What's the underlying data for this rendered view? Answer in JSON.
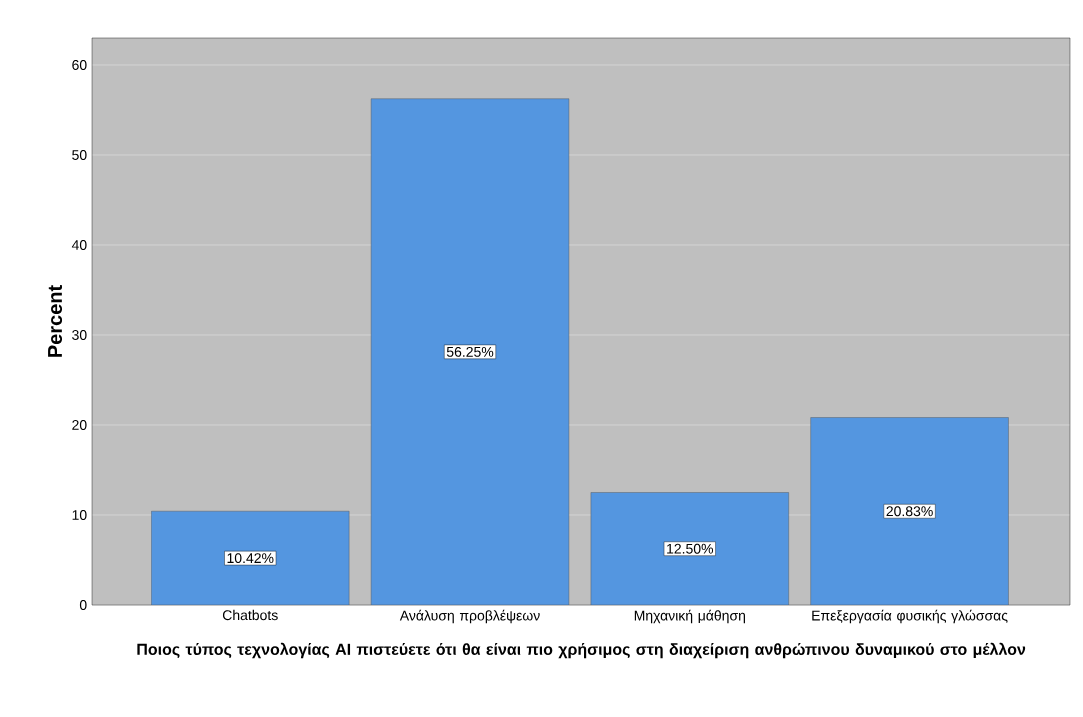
{
  "chart_data": {
    "type": "bar",
    "xlabel": "Ποιος τύπος τεχνολογίας AI πιστεύετε ότι θα είναι πιο χρήσιμος στη διαχείριση ανθρώπινου δυναμικού στο μέλλον",
    "ylabel": "Percent",
    "categories": [
      "Chatbots",
      "Ανάλυση προβλέψεων",
      "Μηχανική μάθηση",
      "Επεξεργασία φυσικής γλώσσας"
    ],
    "values": [
      10.42,
      56.25,
      12.5,
      20.83
    ],
    "value_labels": [
      "10.42%",
      "56.25%",
      "12.50%",
      "20.83%"
    ],
    "color": "#5496e0",
    "ylim": [
      0,
      63
    ],
    "yticks": [
      0,
      10,
      20,
      30,
      40,
      50,
      60
    ],
    "grid": "y"
  }
}
